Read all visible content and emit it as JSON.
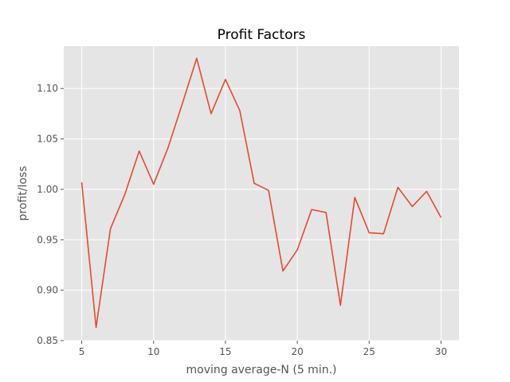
{
  "chart_data": {
    "type": "line",
    "title": "Profit Factors",
    "xlabel": "moving average-N  (5 min.)",
    "ylabel": "profit/loss",
    "xlim": [
      3.75,
      31.25
    ],
    "ylim": [
      0.85,
      1.142
    ],
    "xticks": [
      5,
      10,
      15,
      20,
      25,
      30
    ],
    "yticks": [
      0.85,
      0.9,
      0.95,
      1.0,
      1.05,
      1.1
    ],
    "ytick_labels": [
      "0.85",
      "0.90",
      "0.95",
      "1.00",
      "1.05",
      "1.10"
    ],
    "grid": true,
    "background": "#e5e5e5",
    "series": [
      {
        "color": "#e24a33",
        "x": [
          5,
          6,
          7,
          8,
          9,
          10,
          11,
          12,
          13,
          14,
          15,
          16,
          17,
          18,
          19,
          20,
          21,
          22,
          23,
          24,
          25,
          26,
          27,
          28,
          29,
          30
        ],
        "y": [
          1.007,
          0.863,
          0.961,
          0.995,
          1.038,
          1.005,
          1.041,
          1.085,
          1.13,
          1.075,
          1.109,
          1.078,
          1.006,
          0.999,
          0.919,
          0.94,
          0.98,
          0.977,
          0.885,
          0.992,
          0.957,
          0.956,
          1.002,
          0.983,
          0.998,
          0.972
        ]
      }
    ]
  }
}
